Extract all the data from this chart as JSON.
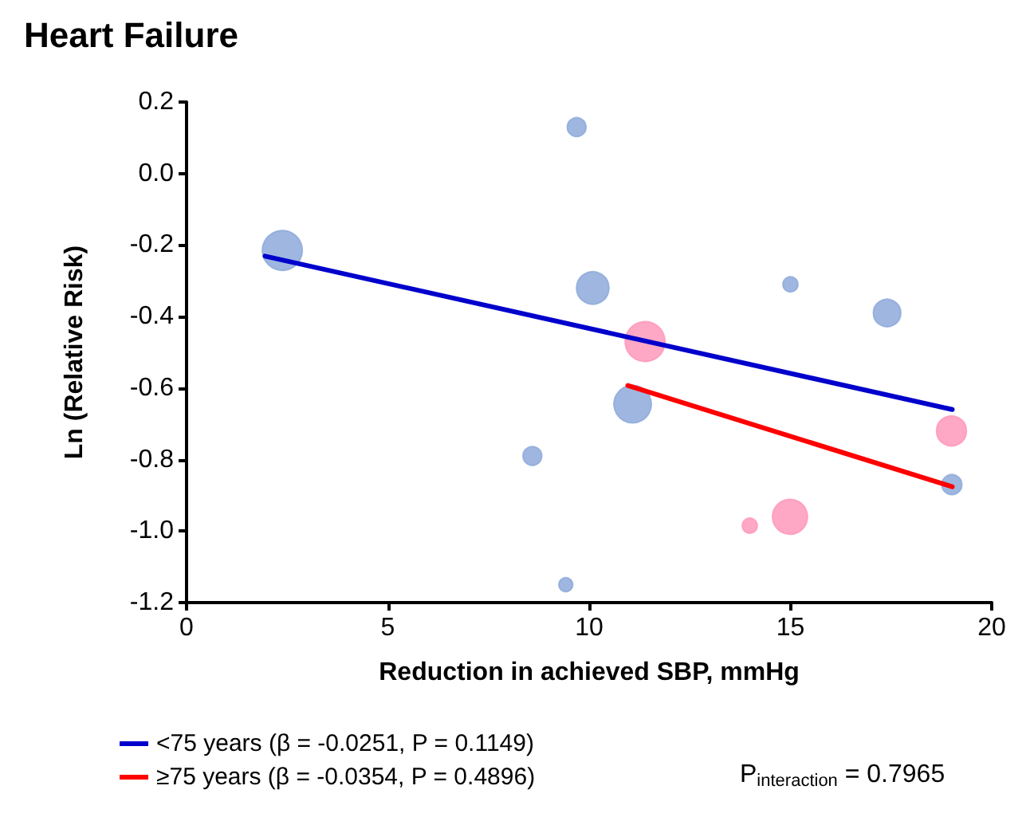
{
  "chart_data": {
    "type": "bubble",
    "title": "Heart Failure",
    "xlabel": "Reduction in achieved SBP, mmHg",
    "ylabel": "Ln (Relative Risk)",
    "xlim": [
      0,
      20
    ],
    "xticks": [
      0,
      5,
      10,
      15,
      20
    ],
    "ylim": [
      -1.2,
      0.2
    ],
    "yticks": [
      {
        "value": -1.2,
        "label": "-1.2"
      },
      {
        "value": -1,
        "label": "-1.0"
      },
      {
        "value": -0.8,
        "label": "-0.8"
      },
      {
        "value": -0.6,
        "label": "-0.6"
      },
      {
        "value": -0.4,
        "label": "-0.4"
      },
      {
        "value": -0.2,
        "label": "-0.2"
      },
      {
        "value": 0,
        "label": "0.0"
      },
      {
        "value": 0.2,
        "label": "0.2"
      }
    ],
    "grid": false,
    "legend": "bottom",
    "marker": "circle",
    "series": [
      {
        "color": "#8eaadb",
        "x": [
          2.38,
          9.69,
          10.09,
          15.0,
          17.4,
          11.08,
          8.59,
          19.01,
          9.42
        ],
        "values": [
          -0.215,
          0.13,
          -0.32,
          -0.31,
          -0.39,
          -0.645,
          -0.79,
          -0.87,
          -1.15
        ],
        "sizes": [
          1.0,
          0.22,
          0.66,
          0.14,
          0.47,
          0.88,
          0.22,
          0.25,
          0.12
        ]
      },
      {
        "color": "#ff99bb",
        "x": [
          11.39,
          19.0,
          14.99,
          13.99
        ],
        "values": [
          -0.47,
          -0.72,
          -0.96,
          -0.985
        ],
        "sizes": [
          1.0,
          0.56,
          0.77,
          0.14
        ]
      },
      {
        "type": "line",
        "name": "<75 years (β = -0.0251, P = 0.1149)",
        "color": "#0000cc",
        "line_style": "solid",
        "marker": "none",
        "x": [
          1.95,
          19.02
        ],
        "values": [
          -0.231,
          -0.66
        ]
      },
      {
        "type": "line",
        "name": "≥75 years (β = -0.0354, P = 0.4896)",
        "color": "#ff0000",
        "line_style": "solid",
        "marker": "none",
        "x": [
          10.96,
          19.02
        ],
        "values": [
          -0.593,
          -0.876
        ]
      }
    ],
    "annotations": [
      "P$_{interaction}$ = 0.7965"
    ]
  }
}
